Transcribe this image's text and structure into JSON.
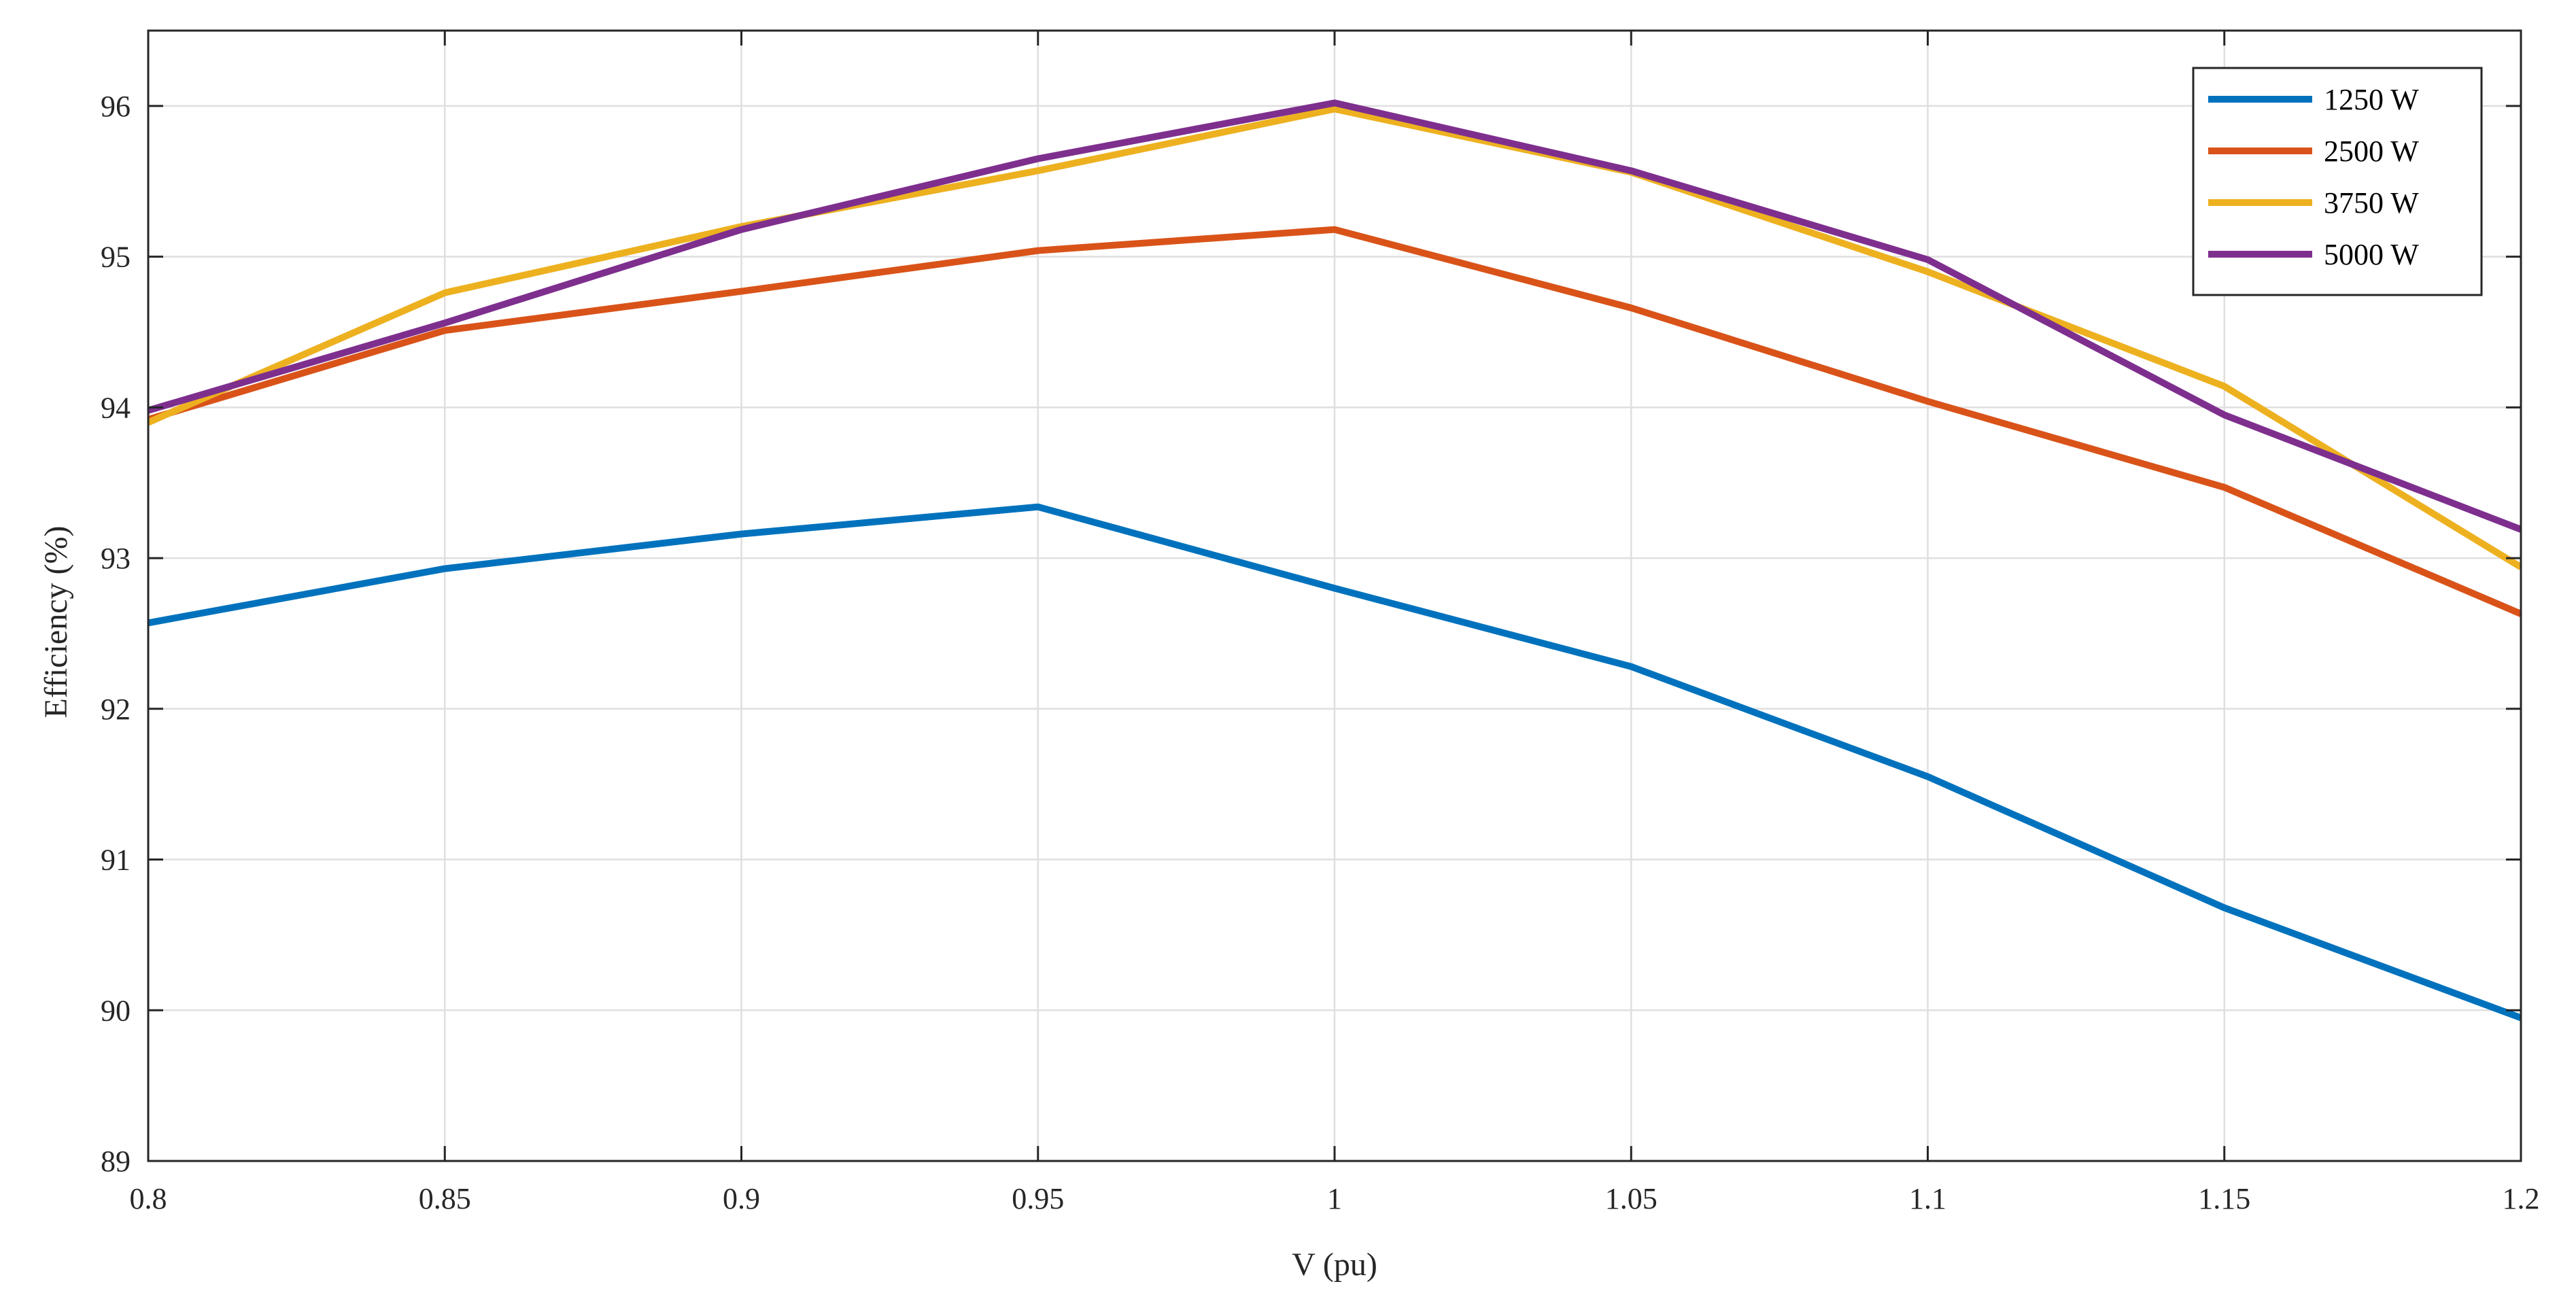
{
  "chart_data": {
    "type": "line",
    "title": "",
    "xlabel": "V (pu)",
    "ylabel": "Efficiency (%)",
    "xlim": [
      0.8,
      1.2
    ],
    "ylim": [
      89,
      96.5
    ],
    "xticks": [
      0.8,
      0.85,
      0.9,
      0.95,
      1,
      1.05,
      1.1,
      1.15,
      1.2
    ],
    "xtick_labels": [
      "0.8",
      "0.85",
      "0.9",
      "0.95",
      "1",
      "1.05",
      "1.1",
      "1.15",
      "1.2"
    ],
    "yticks": [
      89,
      90,
      91,
      92,
      93,
      94,
      95,
      96
    ],
    "ytick_labels": [
      "89",
      "90",
      "91",
      "92",
      "93",
      "94",
      "95",
      "96"
    ],
    "grid": true,
    "legend_position": "top-right",
    "x": [
      0.8,
      0.85,
      0.9,
      0.95,
      1,
      1.05,
      1.1,
      1.15,
      1.2
    ],
    "series": [
      {
        "name": "1250 W",
        "color": "#0072BD",
        "values": [
          92.57,
          92.93,
          93.16,
          93.34,
          92.8,
          92.28,
          91.55,
          90.68,
          89.95
        ]
      },
      {
        "name": "2500 W",
        "color": "#D95319",
        "values": [
          93.92,
          94.51,
          94.77,
          95.04,
          95.18,
          94.66,
          94.04,
          93.47,
          92.63
        ]
      },
      {
        "name": "3750 W",
        "color": "#EDB120",
        "values": [
          93.9,
          94.76,
          95.2,
          95.57,
          95.98,
          95.56,
          94.9,
          94.14,
          92.94
        ]
      },
      {
        "name": "5000 W",
        "color": "#7E2F8E",
        "values": [
          93.98,
          94.56,
          95.18,
          95.65,
          96.02,
          95.57,
          94.98,
          93.95,
          93.19
        ]
      }
    ]
  }
}
